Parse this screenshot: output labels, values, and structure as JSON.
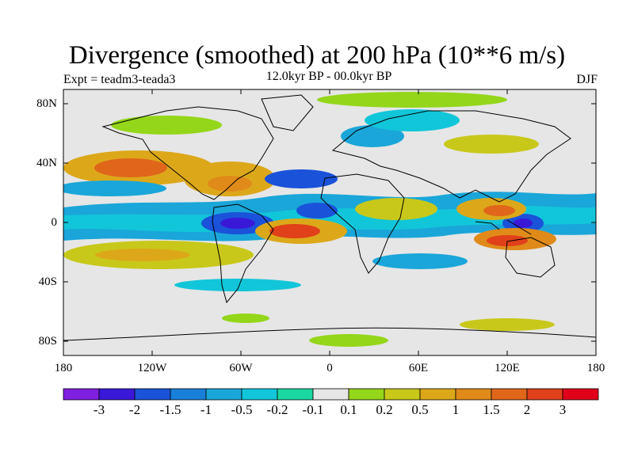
{
  "header": {
    "title": "Divergence (smoothed) at 200 hPa (10**6 m/s)",
    "experiment": "Expt = teadm3-teada3",
    "period": "12.0kyr BP - 00.0kyr BP",
    "season": "DJF"
  },
  "map": {
    "lat_labels": [
      "80N",
      "40N",
      "0",
      "40S",
      "80S"
    ],
    "lon_labels": [
      "180",
      "120W",
      "60W",
      "0",
      "60E",
      "120E",
      "180"
    ],
    "lon_range": [
      -180,
      180
    ],
    "lat_range": [
      -90,
      90
    ]
  },
  "colorbar": {
    "labels": [
      "-3",
      "-2",
      "-1.5",
      "-1",
      "-0.5",
      "-0.2",
      "-0.1",
      "0.1",
      "0.2",
      "0.5",
      "1",
      "1.5",
      "2",
      "3"
    ],
    "colors": [
      "#7f1fe0",
      "#3a18d8",
      "#1a52d9",
      "#1980d9",
      "#1aa6d9",
      "#12c6d9",
      "#1ad9a0",
      "#e6e6e6",
      "#94d61a",
      "#c8c81a",
      "#dca81a",
      "#e08a1a",
      "#e0661a",
      "#e0401a",
      "#e0001a"
    ]
  }
}
